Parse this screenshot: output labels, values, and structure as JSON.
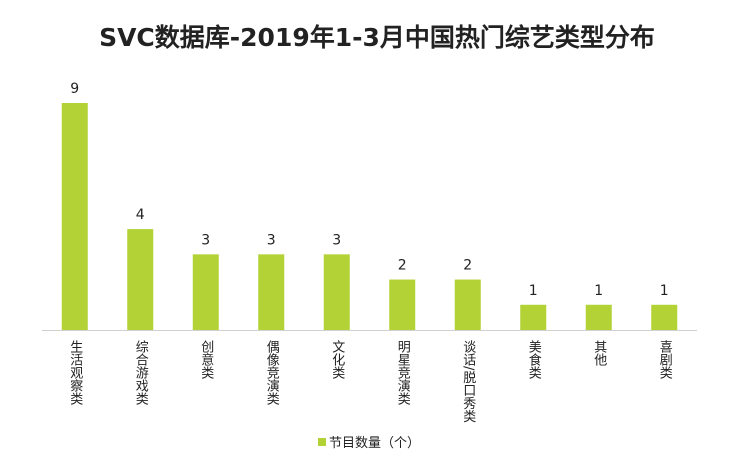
{
  "chart_data": {
    "type": "bar",
    "title": "SVC数据库-2019年1-3月中国热门综艺类型分布",
    "categories": [
      "生活观察类",
      "综合游戏类",
      "创意类",
      "偶像竞演类",
      "文化类",
      "明星竞演类",
      "谈话/脱口秀类",
      "美食类",
      "其他",
      "喜剧类"
    ],
    "series": [
      {
        "name": "节目数量（个）",
        "color": "#b2d235",
        "values": [
          9,
          4,
          3,
          3,
          3,
          2,
          2,
          1,
          1,
          1
        ]
      }
    ],
    "legend": "bottom"
  }
}
